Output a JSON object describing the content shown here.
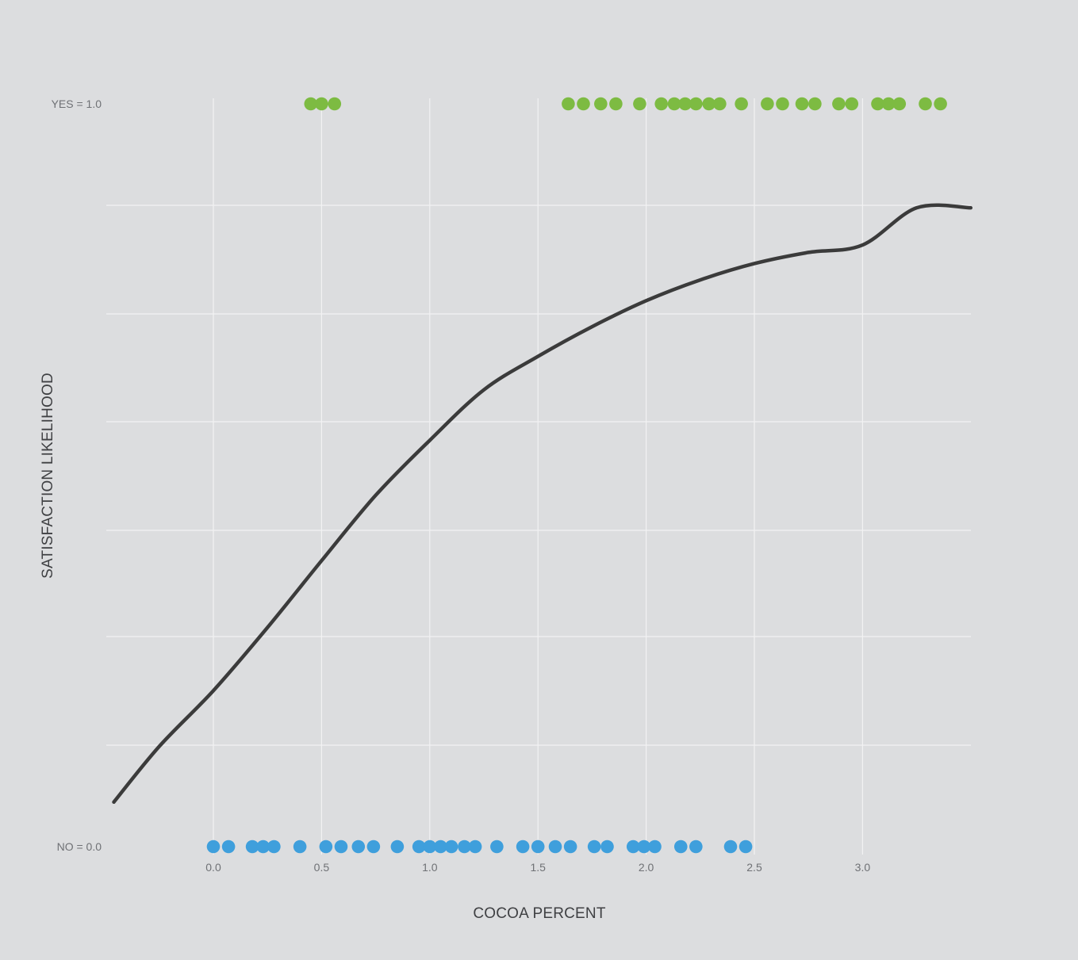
{
  "chart_data": {
    "type": "scatter",
    "xlabel": "COCOA PERCENT",
    "ylabel": "SATISFACTION LIKELIHOOD",
    "x_ticks": [
      "0.0",
      "0.5",
      "1.0",
      "1.5",
      "2.0",
      "2.5",
      "3.0"
    ],
    "y_tick_labels": [
      {
        "value": 1.0,
        "label": "YES = 1.0"
      },
      {
        "value": 0.0,
        "label": "NO = 0.0"
      }
    ],
    "xlim": [
      -0.5,
      3.5
    ],
    "ylim": [
      0.0,
      1.0
    ],
    "grid": true,
    "series": [
      {
        "kind": "points",
        "y": 1.0,
        "color": "#7dbb42",
        "x": [
          0.45,
          0.5,
          0.56,
          1.64,
          1.71,
          1.79,
          1.86,
          1.97,
          2.07,
          2.13,
          2.18,
          2.23,
          2.29,
          2.34,
          2.44,
          2.56,
          2.63,
          2.72,
          2.78,
          2.89,
          2.95,
          3.07,
          3.12,
          3.17,
          3.29,
          3.36
        ]
      },
      {
        "kind": "points",
        "y": 0.0,
        "color": "#3f9fdc",
        "x": [
          0.0,
          0.07,
          0.18,
          0.23,
          0.28,
          0.4,
          0.52,
          0.59,
          0.67,
          0.74,
          0.85,
          0.95,
          1.0,
          1.05,
          1.1,
          1.16,
          1.21,
          1.31,
          1.43,
          1.5,
          1.58,
          1.65,
          1.76,
          1.82,
          1.94,
          1.99,
          2.04,
          2.16,
          2.23,
          2.39,
          2.46
        ]
      },
      {
        "kind": "curve",
        "color": "#3b3b3b",
        "x": [
          -0.46,
          -0.25,
          0.0,
          0.25,
          0.5,
          0.75,
          1.0,
          1.25,
          1.5,
          1.75,
          2.0,
          2.25,
          2.5,
          2.75,
          3.0,
          3.25,
          3.5
        ],
        "y": [
          0.06,
          0.135,
          0.21,
          0.295,
          0.385,
          0.473,
          0.547,
          0.615,
          0.66,
          0.7,
          0.735,
          0.763,
          0.785,
          0.8,
          0.81,
          0.86,
          0.86
        ]
      }
    ]
  }
}
